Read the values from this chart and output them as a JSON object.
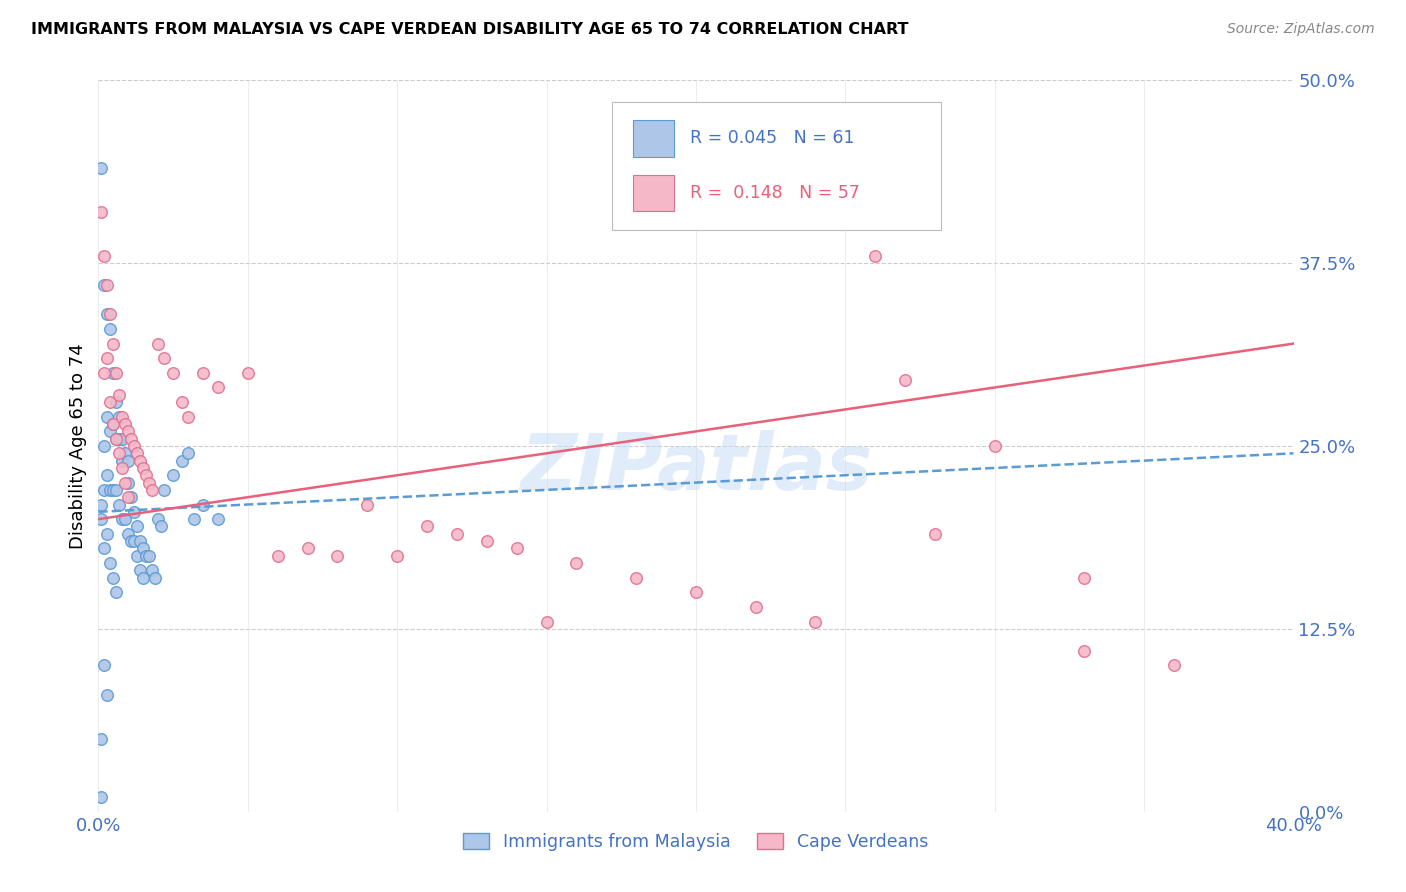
{
  "title": "IMMIGRANTS FROM MALAYSIA VS CAPE VERDEAN DISABILITY AGE 65 TO 74 CORRELATION CHART",
  "source": "Source: ZipAtlas.com",
  "ylabel": "Disability Age 65 to 74",
  "yticks": [
    "0.0%",
    "12.5%",
    "25.0%",
    "37.5%",
    "50.0%"
  ],
  "ytick_vals": [
    0.0,
    0.125,
    0.25,
    0.375,
    0.5
  ],
  "xlim": [
    0.0,
    0.4
  ],
  "ylim": [
    0.0,
    0.5
  ],
  "legend_malaysia_R": "0.045",
  "legend_malaysia_N": "61",
  "legend_capeverde_R": "0.148",
  "legend_capeverde_N": "57",
  "malaysia_fill": "#aec6e8",
  "malaysia_edge": "#5b9bd5",
  "capeverde_fill": "#f4b8c8",
  "capeverde_edge": "#e07090",
  "malaysia_line_color": "#5b9bd5",
  "capeverde_line_color": "#e8607a",
  "watermark": "ZIPatlas",
  "malaysia_x": [
    0.001,
    0.001,
    0.001,
    0.001,
    0.002,
    0.002,
    0.002,
    0.002,
    0.002,
    0.003,
    0.003,
    0.003,
    0.003,
    0.003,
    0.004,
    0.004,
    0.004,
    0.004,
    0.005,
    0.005,
    0.005,
    0.005,
    0.006,
    0.006,
    0.006,
    0.006,
    0.007,
    0.007,
    0.007,
    0.008,
    0.008,
    0.008,
    0.009,
    0.009,
    0.01,
    0.01,
    0.01,
    0.011,
    0.011,
    0.012,
    0.012,
    0.013,
    0.013,
    0.014,
    0.014,
    0.015,
    0.015,
    0.016,
    0.017,
    0.018,
    0.019,
    0.02,
    0.021,
    0.022,
    0.025,
    0.028,
    0.03,
    0.032,
    0.035,
    0.04,
    0.001
  ],
  "malaysia_y": [
    0.44,
    0.21,
    0.2,
    0.01,
    0.36,
    0.25,
    0.22,
    0.18,
    0.1,
    0.34,
    0.27,
    0.23,
    0.19,
    0.08,
    0.33,
    0.26,
    0.22,
    0.17,
    0.3,
    0.265,
    0.22,
    0.16,
    0.28,
    0.255,
    0.22,
    0.15,
    0.27,
    0.255,
    0.21,
    0.255,
    0.24,
    0.2,
    0.245,
    0.2,
    0.24,
    0.225,
    0.19,
    0.215,
    0.185,
    0.205,
    0.185,
    0.195,
    0.175,
    0.185,
    0.165,
    0.18,
    0.16,
    0.175,
    0.175,
    0.165,
    0.16,
    0.2,
    0.195,
    0.22,
    0.23,
    0.24,
    0.245,
    0.2,
    0.21,
    0.2,
    0.05
  ],
  "capeverde_x": [
    0.001,
    0.002,
    0.002,
    0.003,
    0.003,
    0.004,
    0.004,
    0.005,
    0.005,
    0.006,
    0.006,
    0.007,
    0.007,
    0.008,
    0.008,
    0.009,
    0.009,
    0.01,
    0.01,
    0.011,
    0.012,
    0.013,
    0.014,
    0.015,
    0.016,
    0.017,
    0.018,
    0.02,
    0.022,
    0.025,
    0.028,
    0.03,
    0.035,
    0.04,
    0.05,
    0.06,
    0.07,
    0.08,
    0.09,
    0.1,
    0.11,
    0.12,
    0.13,
    0.14,
    0.15,
    0.16,
    0.18,
    0.2,
    0.22,
    0.24,
    0.26,
    0.28,
    0.3,
    0.33,
    0.36,
    0.33,
    0.27
  ],
  "capeverde_y": [
    0.41,
    0.38,
    0.3,
    0.36,
    0.31,
    0.34,
    0.28,
    0.32,
    0.265,
    0.3,
    0.255,
    0.285,
    0.245,
    0.27,
    0.235,
    0.265,
    0.225,
    0.26,
    0.215,
    0.255,
    0.25,
    0.245,
    0.24,
    0.235,
    0.23,
    0.225,
    0.22,
    0.32,
    0.31,
    0.3,
    0.28,
    0.27,
    0.3,
    0.29,
    0.3,
    0.175,
    0.18,
    0.175,
    0.21,
    0.175,
    0.195,
    0.19,
    0.185,
    0.18,
    0.13,
    0.17,
    0.16,
    0.15,
    0.14,
    0.13,
    0.38,
    0.19,
    0.25,
    0.11,
    0.1,
    0.16,
    0.295
  ]
}
